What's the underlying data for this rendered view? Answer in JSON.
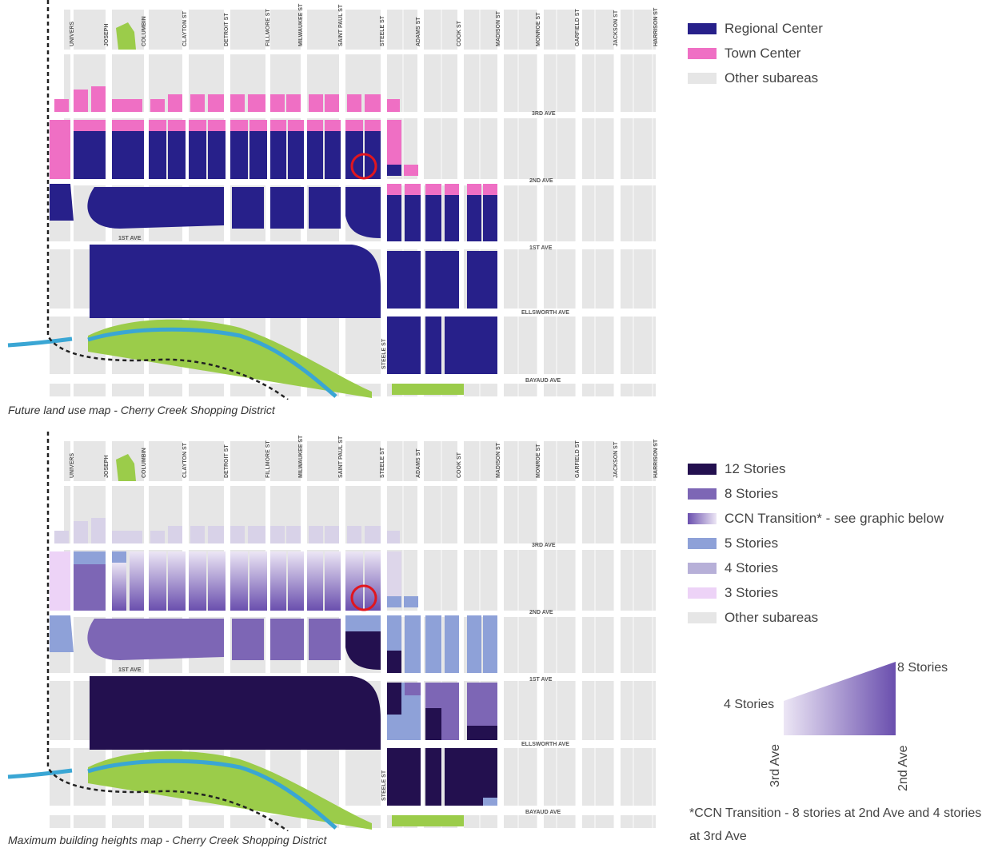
{
  "map1": {
    "caption": "Future land use map - Cherry Creek Shopping District",
    "legend": [
      {
        "label": "Regional Center",
        "color": "#27208a"
      },
      {
        "label": "Town Center",
        "color": "#ef6fc4"
      },
      {
        "label": "Other subareas",
        "color": "#e6e6e6"
      }
    ]
  },
  "map2": {
    "caption": "Maximum building heights map - Cherry Creek Shopping District",
    "legend": [
      {
        "label": "12 Stories",
        "color": "#23104f"
      },
      {
        "label": "8 Stories",
        "color": "#7d66b5"
      },
      {
        "label": "CCN Transition* - see graphic below",
        "color": "gradient"
      },
      {
        "label": "5 Stories",
        "color": "#8ea1d8"
      },
      {
        "label": "4 Stories",
        "color": "#b7b0d8"
      },
      {
        "label": "3 Stories",
        "color": "#edd3f7"
      },
      {
        "label": "Other subareas",
        "color": "#e6e6e6"
      }
    ]
  },
  "streets": {
    "vertical": [
      "UNIVERS",
      "JOSEPH",
      "COLUMBIN",
      "CLAYTON ST",
      "DETROIT ST",
      "FILLMORE ST",
      "MILWAUKEE ST",
      "SAINT PAUL ST",
      "STEELE ST",
      "ADAMS ST",
      "COOK ST",
      "MADISON ST",
      "MONROE ST",
      "GARFIELD ST",
      "JACKSON ST",
      "HARRISON ST"
    ],
    "horizontal": [
      "3RD AVE",
      "2ND AVE",
      "1ST AVE",
      "1ST AVE",
      "ELLSWORTH AVE",
      "BAYAUD AVE"
    ],
    "steele_lower": "STEELE ST"
  },
  "ccn_graphic": {
    "top_label": "8 Stories",
    "left_label": "4 Stories",
    "left_axis": "3rd Ave",
    "right_axis": "2nd Ave"
  },
  "ccn_note": "*CCN Transition - 8 stories at 2nd Ave and 4 stories at 3rd Ave",
  "colors": {
    "regional": "#27208a",
    "town": "#ef6fc4",
    "other": "#e6e6e6",
    "twelve": "#23104f",
    "eight": "#7d66b5",
    "five": "#8ea1d8",
    "four": "#b7b0d8",
    "three": "#edd3f7",
    "river": "#3aa6d4",
    "park": "#9bcc4a",
    "marker": "#e0161f"
  }
}
